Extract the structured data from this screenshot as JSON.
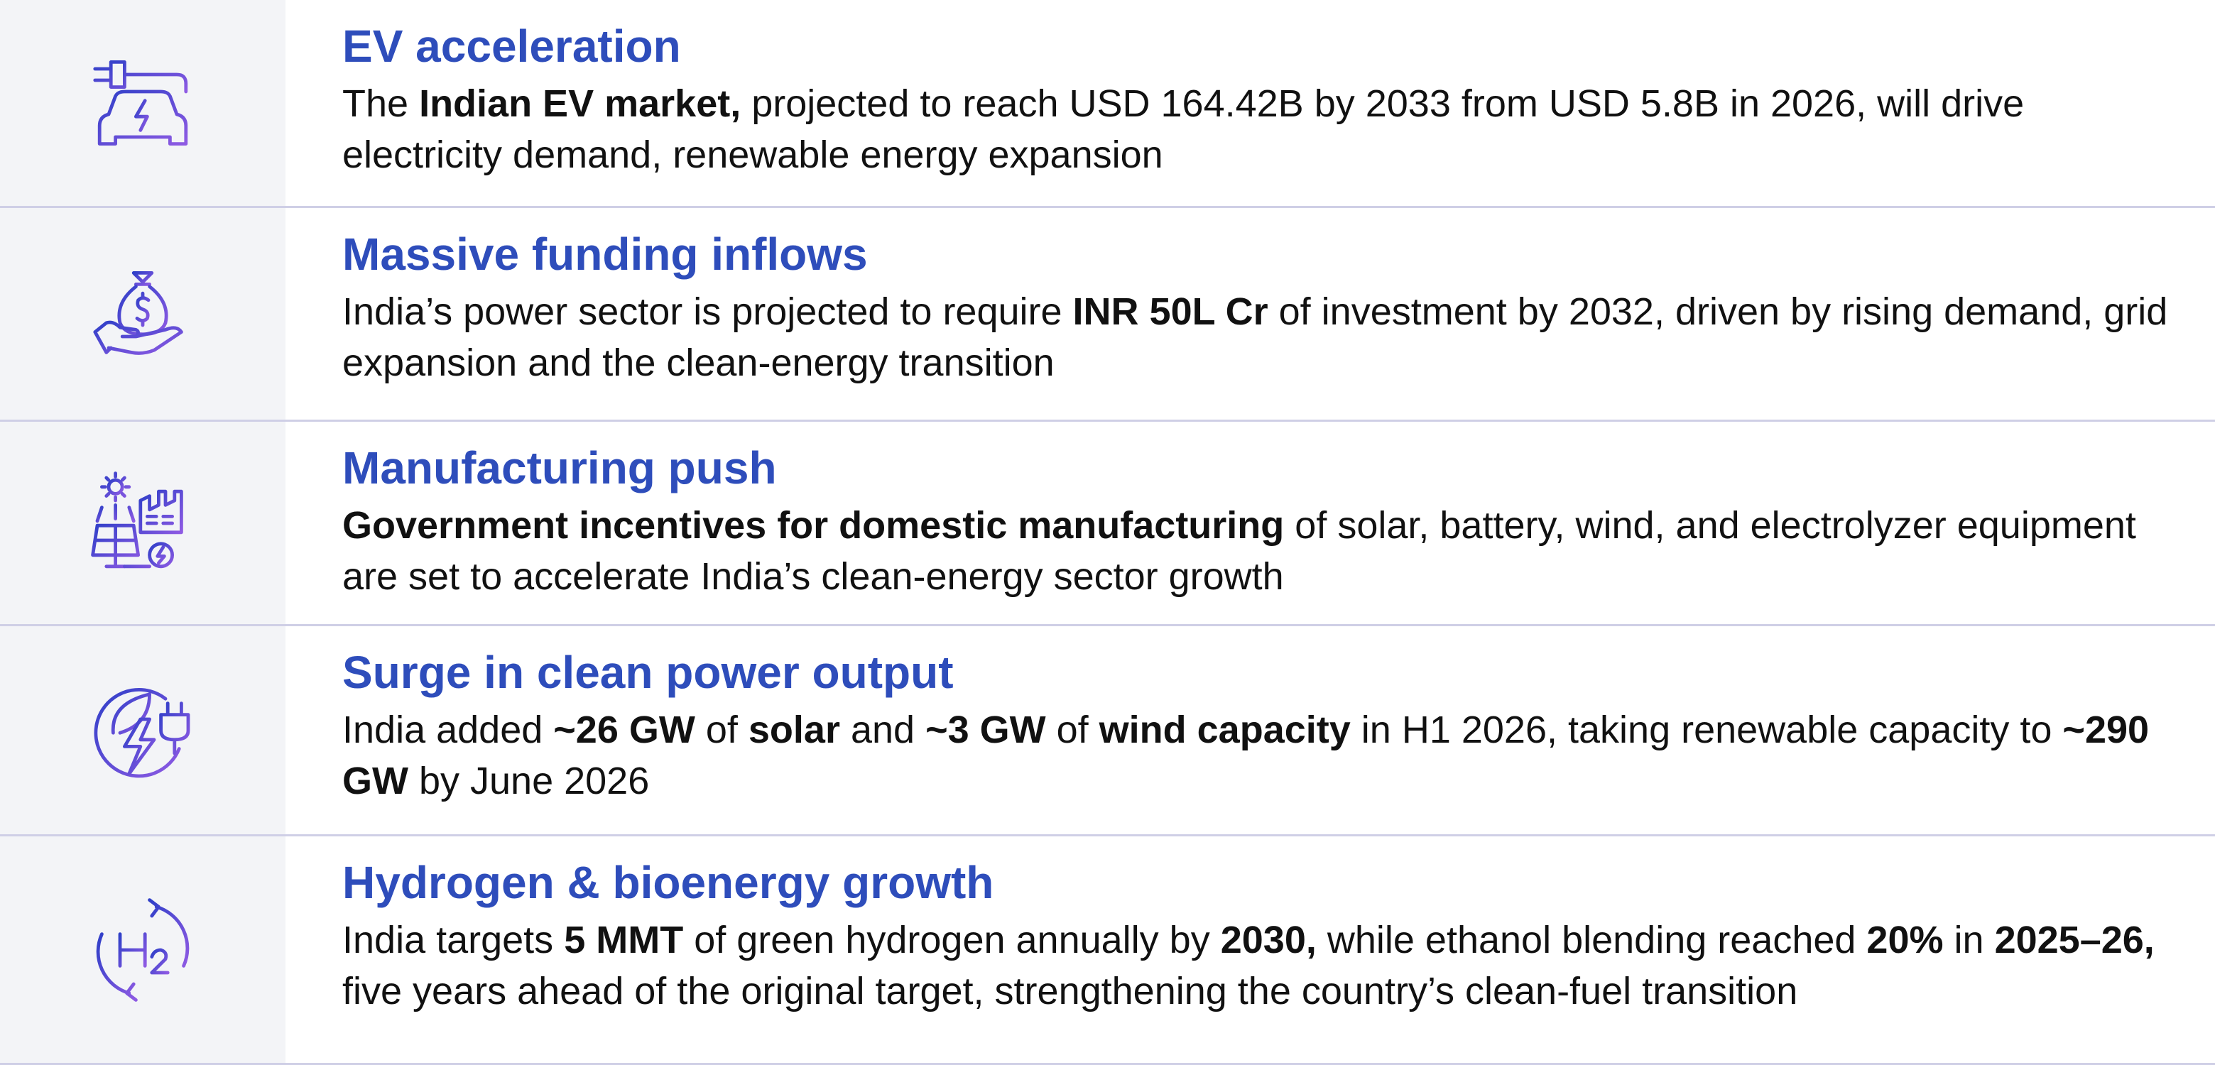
{
  "rows": [
    {
      "title": "EV acceleration",
      "description": [
        {
          "text": "The "
        },
        {
          "text": "Indian EV market,",
          "bold": true
        },
        {
          "text": " projected to reach USD 164.42B by 2033 from USD 5.8B in 2026, will drive electricity demand, renewable energy expansion"
        }
      ]
    },
    {
      "title": "Massive funding inflows",
      "description": [
        {
          "text": "India’s power sector is projected to require "
        },
        {
          "text": "INR 50L Cr",
          "bold": true
        },
        {
          "text": " of investment by 2032, driven by rising demand, grid expansion and the clean-energy transition"
        }
      ]
    },
    {
      "title": "Manufacturing push",
      "description": [
        {
          "text": "Government incentives for domestic manufacturing",
          "bold": true
        },
        {
          "text": " of solar, battery, wind, and electrolyzer equipment are set to accelerate India’s clean-energy sector growth"
        }
      ]
    },
    {
      "title": "Surge in clean power output",
      "description": [
        {
          "text": "India added "
        },
        {
          "text": "~26 GW",
          "bold": true
        },
        {
          "text": " of "
        },
        {
          "text": "solar",
          "bold": true
        },
        {
          "text": " and "
        },
        {
          "text": "~3 GW",
          "bold": true
        },
        {
          "text": " of "
        },
        {
          "text": "wind capacity",
          "bold": true
        },
        {
          "text": " in H1 2026, taking renewable capacity to "
        },
        {
          "text": "~290 GW",
          "bold": true
        },
        {
          "text": " by June 2026"
        }
      ]
    },
    {
      "title": "Hydrogen & bioenergy growth",
      "description": [
        {
          "text": "India targets "
        },
        {
          "text": "5 MMT",
          "bold": true
        },
        {
          "text": " of green hydrogen annually by "
        },
        {
          "text": "2030,",
          "bold": true
        },
        {
          "text": " while ethanol blending reached "
        },
        {
          "text": "20%",
          "bold": true
        },
        {
          "text": " in "
        },
        {
          "text": "2025–26,",
          "bold": true
        },
        {
          "text": " five years ahead of the original target, strengthening the country’s clean-fuel transition"
        }
      ]
    }
  ]
}
